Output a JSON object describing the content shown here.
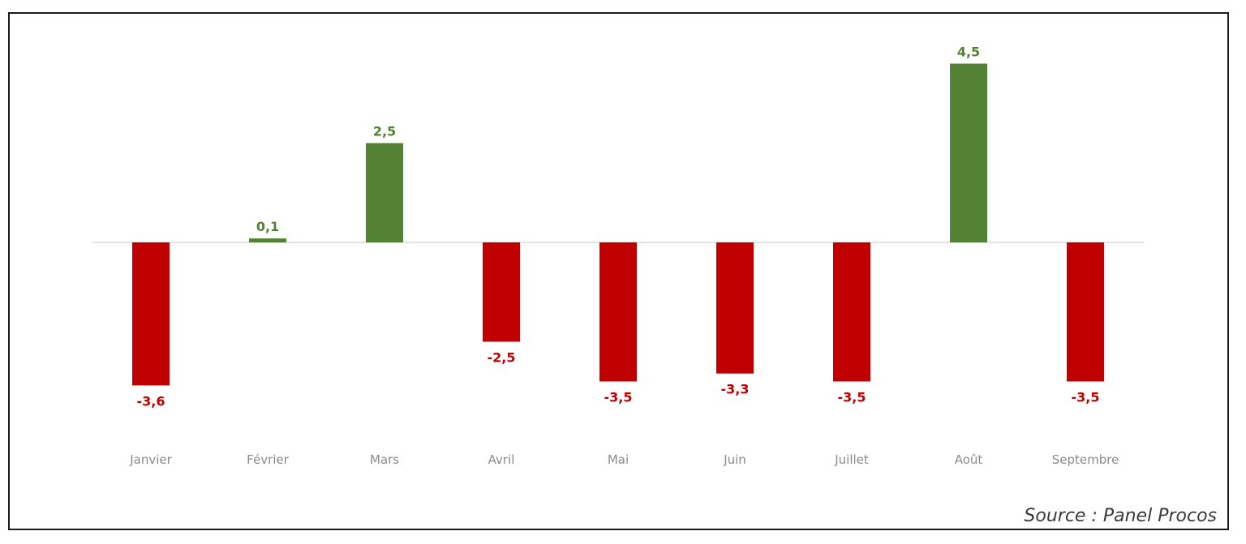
{
  "chart_data": {
    "type": "bar",
    "categories": [
      "Janvier",
      "Février",
      "Mars",
      "Avril",
      "Mai",
      "Juin",
      "Juillet",
      "Août",
      "Septembre"
    ],
    "values": [
      -3.6,
      0.1,
      2.5,
      -2.5,
      -3.5,
      -3.3,
      -3.5,
      4.5,
      -3.5
    ],
    "value_labels": [
      "-3,6",
      "0,1",
      "2,5",
      "-2,5",
      "-3,5",
      "-3,3",
      "-3,5",
      "4,5",
      "-3,5"
    ],
    "positive_color": "#548235",
    "negative_color": "#c00000",
    "grid": false,
    "legend": "none"
  },
  "source": "Source : Panel Procos"
}
